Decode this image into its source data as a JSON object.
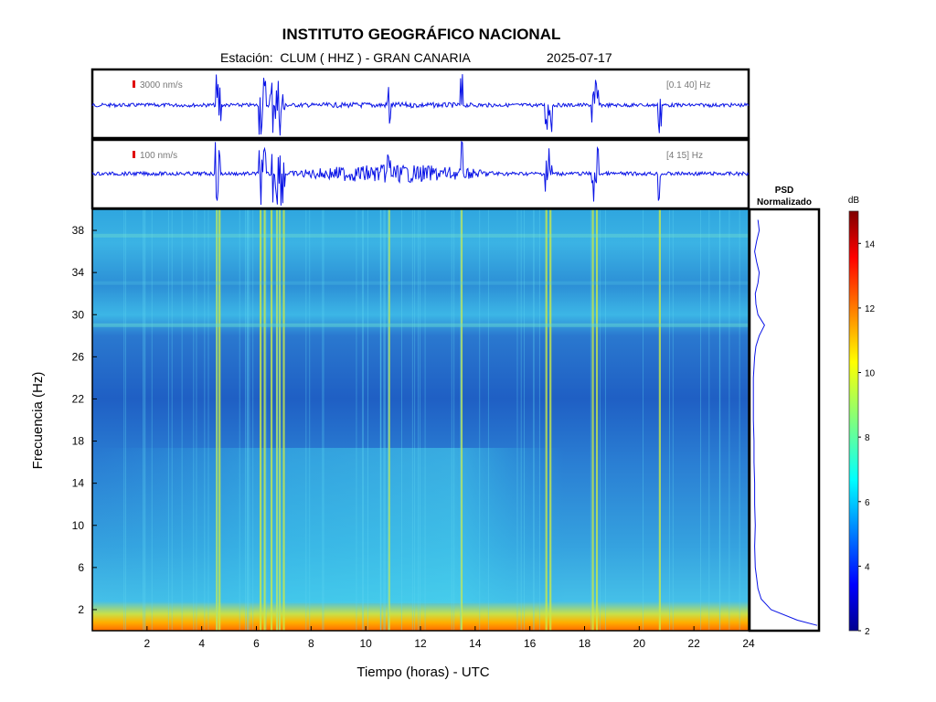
{
  "chart_data": {
    "type": "heatmap",
    "title": "INSTITUTO GEOGRÁFICO NACIONAL",
    "subtitle": "Estación:  CLUM ( HHZ ) - GRAN CANARIA",
    "date": "2025-07-17",
    "xlabel": "Tiempo (horas) - UTC",
    "ylabel": "Frecuencia  (Hz)",
    "xlim": [
      0,
      24
    ],
    "ylim": [
      0,
      40
    ],
    "x_ticks": [
      "2",
      "4",
      "6",
      "8",
      "10",
      "12",
      "14",
      "16",
      "18",
      "20",
      "22",
      "24"
    ],
    "y_ticks": [
      "2",
      "6",
      "10",
      "14",
      "18",
      "22",
      "26",
      "30",
      "34",
      "38"
    ],
    "traces": [
      {
        "scale_label": "3000 nm/s",
        "band_label": "[0.1 40] Hz",
        "scale_color": "#e00000"
      },
      {
        "scale_label": "100 nm/s",
        "band_label": "[4 15] Hz",
        "scale_color": "#e00000"
      }
    ],
    "events_hours": [
      4.55,
      4.65,
      6.15,
      6.3,
      6.55,
      6.75,
      6.85,
      7.0,
      10.85,
      13.5,
      16.6,
      16.75,
      18.3,
      18.45,
      20.75
    ],
    "psd": {
      "title_line1": "PSD",
      "title_line2": "Normalizado",
      "freqs": [
        0.5,
        1,
        2,
        3,
        4,
        5,
        6,
        8,
        10,
        12,
        14,
        16,
        18,
        20,
        22,
        24,
        26,
        27,
        28,
        29,
        30,
        31,
        32,
        33,
        34,
        35,
        36,
        37,
        38,
        39
      ],
      "values": [
        1.0,
        0.7,
        0.3,
        0.15,
        0.1,
        0.08,
        0.06,
        0.05,
        0.06,
        0.05,
        0.05,
        0.04,
        0.04,
        0.03,
        0.03,
        0.03,
        0.05,
        0.07,
        0.12,
        0.2,
        0.1,
        0.07,
        0.06,
        0.1,
        0.12,
        0.08,
        0.05,
        0.08,
        0.12,
        0.1
      ]
    },
    "colorbar": {
      "unit": "dB",
      "range": [
        2,
        15
      ],
      "ticks": [
        "2",
        "4",
        "6",
        "8",
        "10",
        "12",
        "14"
      ],
      "colormap": "jet"
    },
    "colors": {
      "trace": "#0a14e6",
      "frame": "#000000"
    }
  }
}
